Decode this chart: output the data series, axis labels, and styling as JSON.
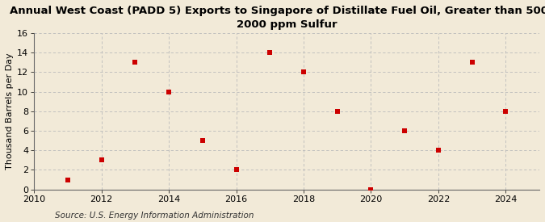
{
  "title": "Annual West Coast (PADD 5) Exports to Singapore of Distillate Fuel Oil, Greater than 500 to\n2000 ppm Sulfur",
  "ylabel": "Thousand Barrels per Day",
  "source": "Source: U.S. Energy Information Administration",
  "years": [
    2011,
    2012,
    2013,
    2014,
    2015,
    2016,
    2017,
    2018,
    2019,
    2020,
    2021,
    2022,
    2023,
    2024
  ],
  "values": [
    1,
    3,
    13,
    10,
    5,
    2,
    14,
    12,
    8,
    0,
    6,
    4,
    13,
    8
  ],
  "xlim": [
    2010,
    2025
  ],
  "ylim": [
    0,
    16
  ],
  "yticks": [
    0,
    2,
    4,
    6,
    8,
    10,
    12,
    14,
    16
  ],
  "xticks": [
    2010,
    2012,
    2014,
    2016,
    2018,
    2020,
    2022,
    2024
  ],
  "marker_color": "#cc0000",
  "marker": "s",
  "marker_size": 4,
  "background_color": "#f2ead8",
  "plot_background_color": "#f2ead8",
  "grid_color": "#bbbbbb",
  "title_fontsize": 9.5,
  "ylabel_fontsize": 8,
  "source_fontsize": 7.5,
  "tick_fontsize": 8
}
